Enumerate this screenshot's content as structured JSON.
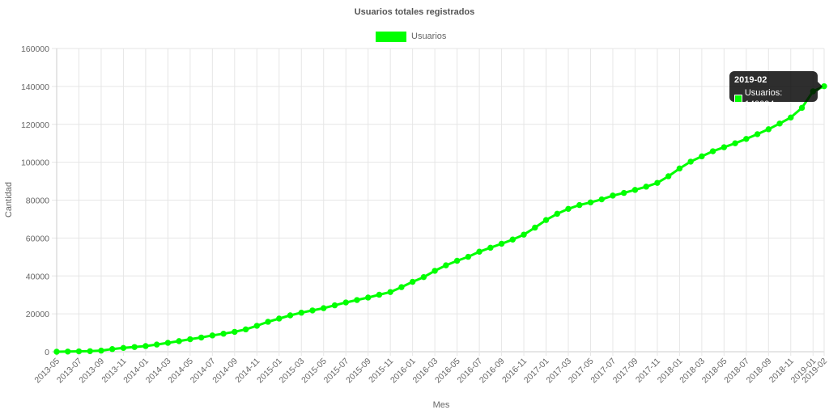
{
  "chart_data": {
    "type": "line",
    "title": "Usuarios totales registrados",
    "xlabel": "Mes",
    "ylabel": "Cantidad",
    "ylim": [
      0,
      160000
    ],
    "yticks": [
      0,
      20000,
      40000,
      60000,
      80000,
      100000,
      120000,
      140000,
      160000
    ],
    "grid": true,
    "legend_position": "top",
    "x": [
      "2013-05",
      "2013-06",
      "2013-07",
      "2013-08",
      "2013-09",
      "2013-10",
      "2013-11",
      "2013-12",
      "2014-01",
      "2014-02",
      "2014-03",
      "2014-04",
      "2014-05",
      "2014-06",
      "2014-07",
      "2014-08",
      "2014-09",
      "2014-10",
      "2014-11",
      "2014-12",
      "2015-01",
      "2015-02",
      "2015-03",
      "2015-04",
      "2015-05",
      "2015-06",
      "2015-07",
      "2015-08",
      "2015-09",
      "2015-10",
      "2015-11",
      "2015-12",
      "2016-01",
      "2016-02",
      "2016-03",
      "2016-04",
      "2016-05",
      "2016-06",
      "2016-07",
      "2016-08",
      "2016-09",
      "2016-10",
      "2016-11",
      "2016-12",
      "2017-01",
      "2017-02",
      "2017-03",
      "2017-04",
      "2017-05",
      "2017-06",
      "2017-07",
      "2017-08",
      "2017-09",
      "2017-10",
      "2017-11",
      "2017-12",
      "2018-01",
      "2018-02",
      "2018-03",
      "2018-04",
      "2018-05",
      "2018-06",
      "2018-07",
      "2018-08",
      "2018-09",
      "2018-10",
      "2018-11",
      "2018-12",
      "2019-01",
      "2019-02"
    ],
    "series": [
      {
        "name": "Usuarios",
        "color": "#00ff00",
        "values": [
          0,
          100,
          200,
          300,
          600,
          1400,
          2000,
          2500,
          3000,
          3800,
          4700,
          5600,
          6600,
          7500,
          8600,
          9500,
          10500,
          11800,
          13700,
          15800,
          17500,
          19200,
          20600,
          21800,
          23000,
          24500,
          26000,
          27300,
          28600,
          30100,
          31500,
          34100,
          36900,
          39400,
          42700,
          45600,
          48000,
          50100,
          52800,
          54900,
          57000,
          59200,
          61800,
          65500,
          69500,
          72800,
          75400,
          77400,
          78800,
          80400,
          82400,
          83800,
          85400,
          87100,
          89100,
          92600,
          96700,
          100300,
          103100,
          105800,
          107900,
          110000,
          112300,
          114800,
          117400,
          120400,
          123600,
          128700,
          137400,
          140094
        ]
      }
    ],
    "tooltip": {
      "title": "2019-02",
      "label": "Usuarios: 140094"
    }
  }
}
